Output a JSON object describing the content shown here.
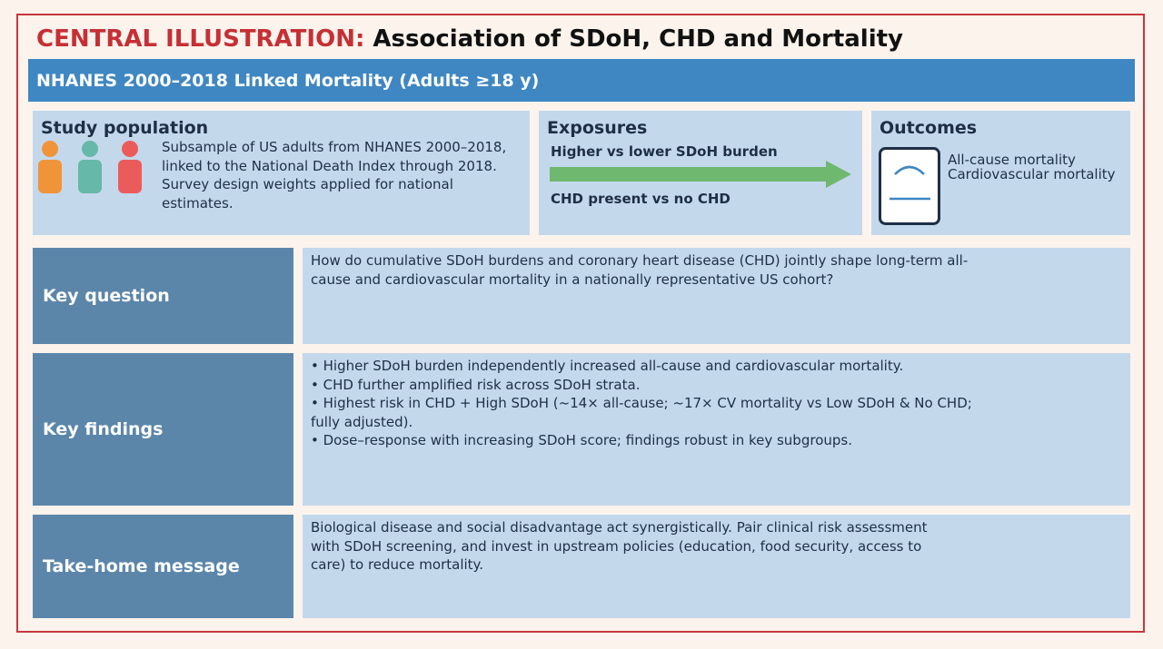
{
  "title": {
    "prefix": "CENTRAL ILLUSTRATION:",
    "main": "Association of SDoH, CHD and Mortality"
  },
  "banner": "NHANES 2000–2018 Linked Mortality (Adults ≥18 y)",
  "study_population": {
    "heading": "Study population",
    "text": "Subsample of US adults from NHANES 2000–2018, linked to the National Death Index through 2018. Survey design weights applied for national estimates.",
    "person_colors": [
      "#f0943a",
      "#66b8a8",
      "#ec5b5b"
    ]
  },
  "exposures": {
    "heading": "Exposures",
    "item1": "Higher vs lower SDoH burden",
    "item2": "CHD present vs no CHD",
    "arrow_color": "#6fb86f"
  },
  "outcomes": {
    "heading": "Outcomes",
    "item1": "All-cause mortality",
    "item2": "Cardiovascular mortality"
  },
  "rows": {
    "key_question": {
      "label": "Key question",
      "text": "How do cumulative SDoH burdens and coronary heart disease (CHD) jointly shape long-term all-cause and cardiovascular mortality in a nationally representative US cohort?"
    },
    "key_findings": {
      "label": "Key findings",
      "bullets": [
        "• Higher SDoH burden independently increased all-cause and cardiovascular mortality.",
        "• CHD further amplified risk across SDoH strata.",
        "• Highest risk in CHD + High SDoH (~14× all-cause; ~17× CV mortality vs Low SDoH & No CHD; fully adjusted).",
        "• Dose–response with increasing SDoH score; findings robust in key subgroups."
      ]
    },
    "take_home": {
      "label": "Take-home message",
      "text": "Biological disease and social disadvantage act synergistically. Pair clinical risk assessment with SDoH screening, and invest in upstream policies (education, food security, access to care) to reduce mortality."
    }
  },
  "colors": {
    "title_red": "#c62f35",
    "banner_blue": "#3f87c2",
    "label_blue": "#5b86aa",
    "panel_blue": "#c4d8ec",
    "frame_red": "#c8363d"
  }
}
